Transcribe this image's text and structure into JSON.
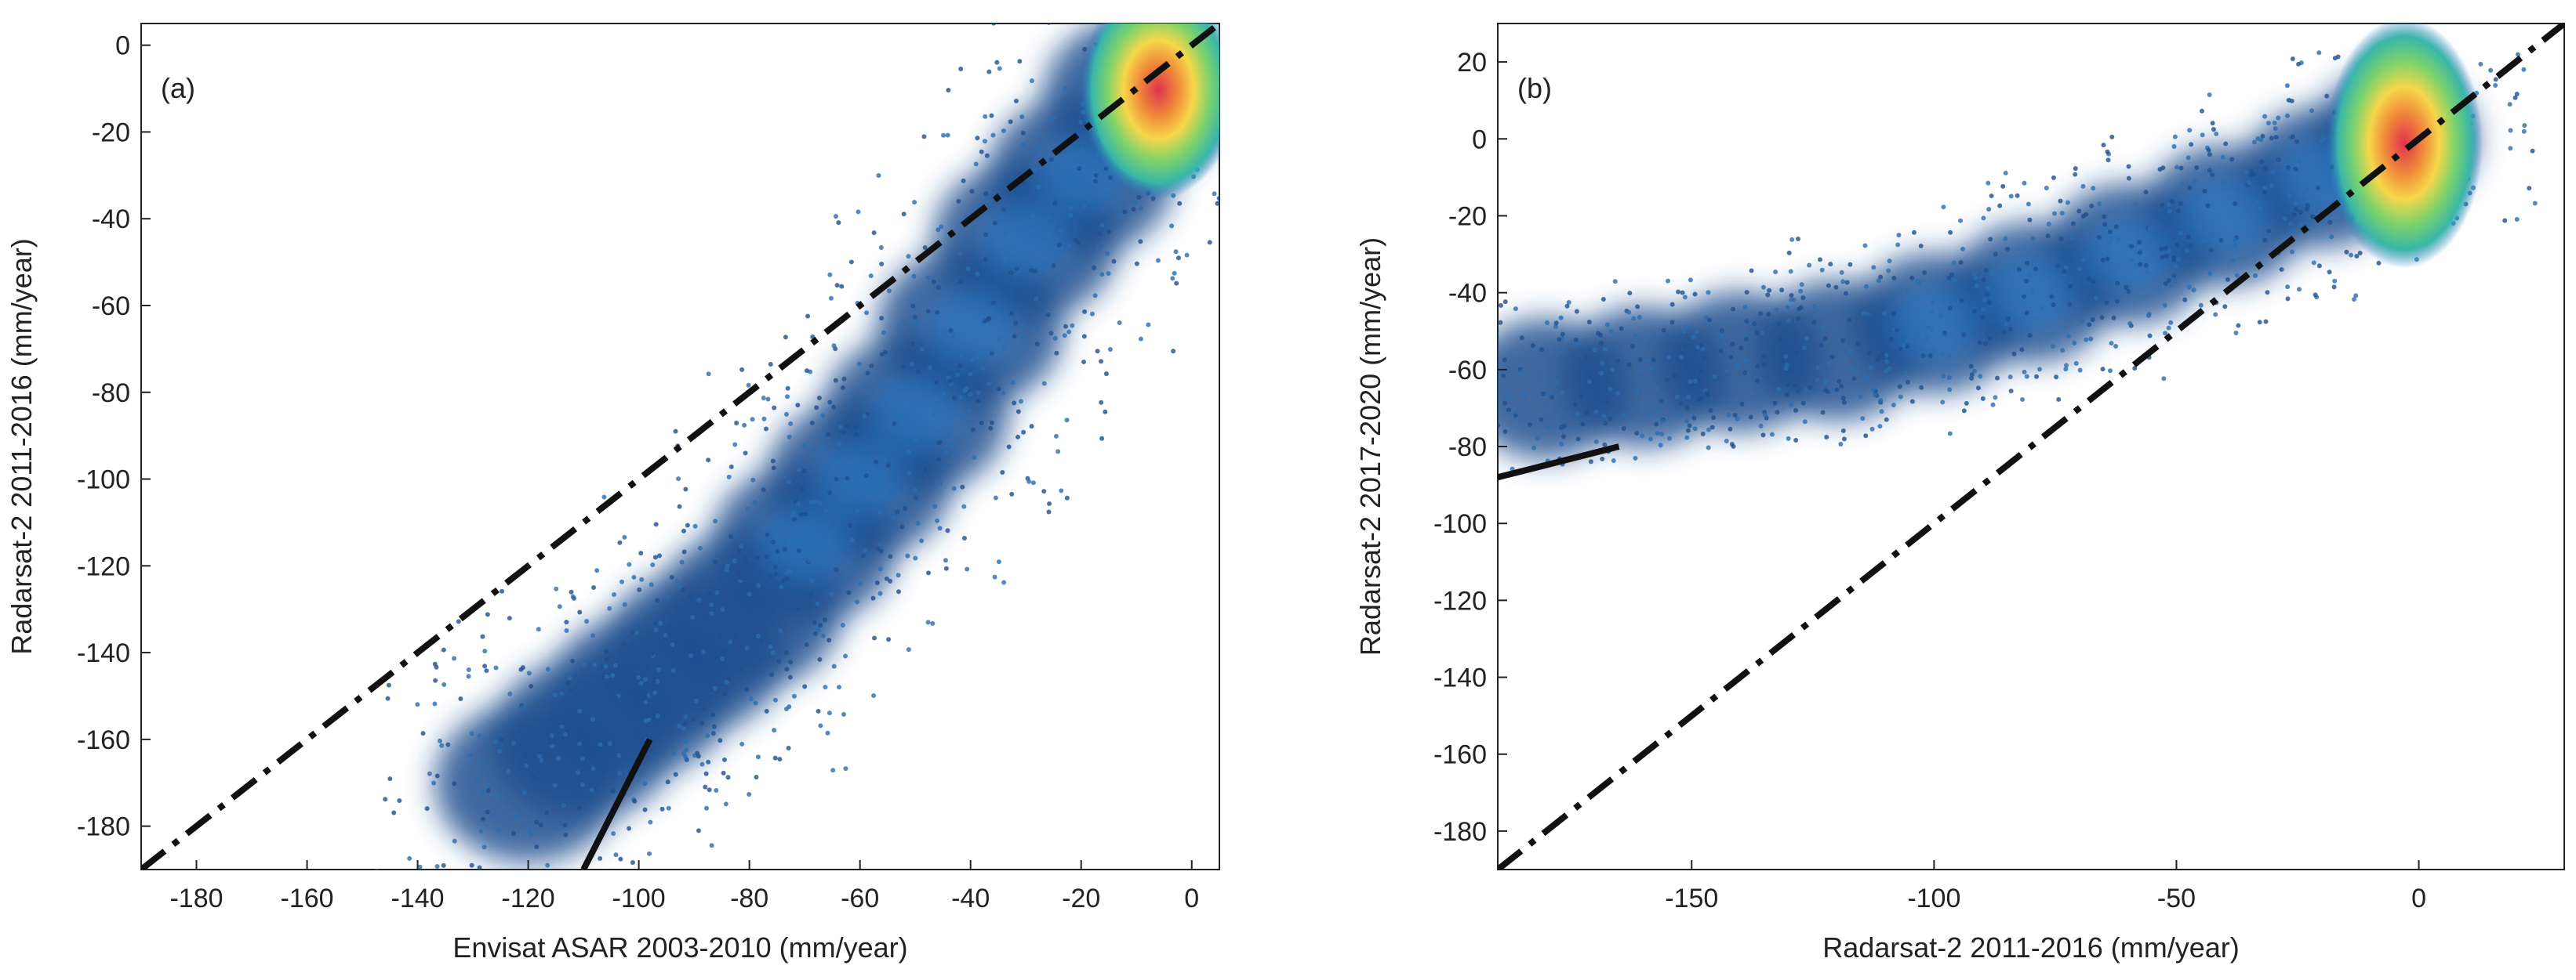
{
  "chart_data": [
    {
      "type": "scatter",
      "subtype": "density-scatter",
      "panel_label": "(a)",
      "xlabel": "Envisat ASAR 2003-2010 (mm/year)",
      "ylabel": "Radarsat-2 2011-2016 (mm/year)",
      "xlim": [
        -190,
        5
      ],
      "ylim": [
        -190,
        5
      ],
      "xticks": [
        -180,
        -160,
        -140,
        -120,
        -100,
        -80,
        -60,
        -40,
        -20,
        0
      ],
      "yticks": [
        -180,
        -160,
        -140,
        -120,
        -100,
        -80,
        -60,
        -40,
        -20,
        0
      ],
      "grid": false,
      "colormap": [
        "#1f4f8f",
        "#2a78c4",
        "#39b7a8",
        "#7ed36a",
        "#f6d74a",
        "#f08a3a",
        "#e0334d"
      ],
      "point_cloud": [
        {
          "x": -120,
          "y": -170
        },
        {
          "x": -110,
          "y": -160
        },
        {
          "x": -100,
          "y": -150
        },
        {
          "x": -90,
          "y": -140
        },
        {
          "x": -80,
          "y": -130
        },
        {
          "x": -70,
          "y": -115
        },
        {
          "x": -60,
          "y": -100
        },
        {
          "x": -50,
          "y": -85
        },
        {
          "x": -40,
          "y": -65
        },
        {
          "x": -30,
          "y": -45
        },
        {
          "x": -20,
          "y": -30
        },
        {
          "x": -10,
          "y": -12
        }
      ],
      "hotspot": {
        "x": -6,
        "y": -3
      },
      "reference_lines": [
        {
          "style": "dash-dot",
          "x": [
            -190,
            5
          ],
          "y": [
            -190,
            5
          ]
        },
        {
          "style": "solid",
          "x": [
            -110,
            -98
          ],
          "y": [
            -190,
            -160
          ]
        }
      ]
    },
    {
      "type": "scatter",
      "subtype": "density-scatter",
      "panel_label": "(b)",
      "xlabel": "Radarsat-2 2011-2016 (mm/year)",
      "ylabel": "Radarsat-2 2017-2020 (mm/year)",
      "xlim": [
        -190,
        30
      ],
      "ylim": [
        -190,
        30
      ],
      "xticks": [
        -150,
        -100,
        -50,
        0
      ],
      "yticks": [
        -180,
        -160,
        -140,
        -120,
        -100,
        -80,
        -60,
        -40,
        -20,
        0,
        20
      ],
      "grid": false,
      "colormap": [
        "#1f4f8f",
        "#2a78c4",
        "#39b7a8",
        "#7ed36a",
        "#f6d74a",
        "#f08a3a",
        "#e0334d"
      ],
      "point_cloud": [
        {
          "x": -180,
          "y": -65
        },
        {
          "x": -160,
          "y": -62
        },
        {
          "x": -140,
          "y": -58
        },
        {
          "x": -120,
          "y": -55
        },
        {
          "x": -100,
          "y": -48
        },
        {
          "x": -80,
          "y": -40
        },
        {
          "x": -60,
          "y": -30
        },
        {
          "x": -40,
          "y": -20
        },
        {
          "x": -20,
          "y": -10
        },
        {
          "x": -5,
          "y": 0
        }
      ],
      "hotspot": {
        "x": -3,
        "y": 5
      },
      "reference_lines": [
        {
          "style": "dash-dot",
          "x": [
            -190,
            30
          ],
          "y": [
            -190,
            30
          ]
        },
        {
          "style": "solid",
          "x": [
            -190,
            -165
          ],
          "y": [
            -88,
            -80
          ]
        }
      ]
    }
  ]
}
